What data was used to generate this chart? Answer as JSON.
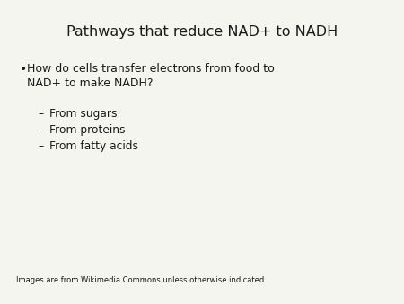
{
  "title": "Pathways that reduce NAD+ to NADH",
  "bullet_text_line1": "How do cells transfer electrons from food to",
  "bullet_text_line2": "NAD+ to make NADH?",
  "sub_bullets": [
    "From sugars",
    "From proteins",
    "From fatty acids"
  ],
  "footer": "Images are from Wikimedia Commons unless otherwise indicated",
  "bg_color": "#f5f5f0",
  "text_color": "#1a1a1a",
  "title_fontsize": 11.5,
  "bullet_fontsize": 9,
  "sub_fontsize": 8.8,
  "footer_fontsize": 6
}
